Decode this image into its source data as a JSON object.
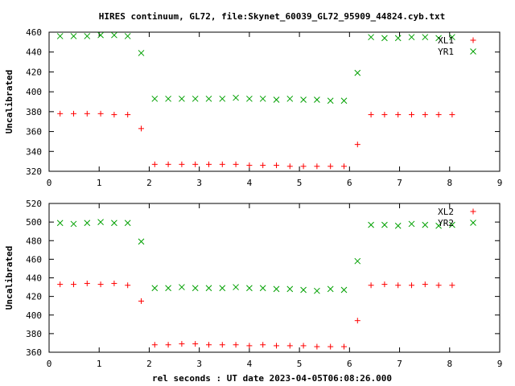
{
  "title": "HIRES continuum, GL72, file:Skynet_60039_GL72_95909_44824.cyb.txt",
  "xlabel": "rel seconds : UT date 2023-04-05T06:08:26.000",
  "colors": {
    "red_series": "#ff0000",
    "green_series": "#00a000",
    "axes": "#000000"
  },
  "chart_data": [
    {
      "type": "scatter",
      "ylabel": "Uncalibrated",
      "xlim": [
        0,
        9
      ],
      "ylim": [
        320,
        460
      ],
      "xticks": [
        0,
        1,
        2,
        3,
        4,
        5,
        6,
        7,
        8,
        9
      ],
      "yticks": [
        320,
        340,
        360,
        380,
        400,
        420,
        440,
        460
      ],
      "grid": false,
      "legend_position": "top-right",
      "series": [
        {
          "name": "XL1",
          "marker": "plus",
          "color": "#ff0000",
          "x": [
            0.22,
            0.49,
            0.76,
            1.03,
            1.3,
            1.57,
            1.84,
            2.11,
            2.38,
            2.65,
            2.92,
            3.19,
            3.46,
            3.73,
            4.0,
            4.27,
            4.54,
            4.81,
            5.08,
            5.35,
            5.62,
            5.89,
            6.16,
            6.43,
            6.7,
            6.97,
            7.24,
            7.51,
            7.78,
            8.05
          ],
          "y": [
            378,
            378,
            378,
            378,
            377,
            377,
            363,
            327,
            327,
            327,
            327,
            327,
            327,
            327,
            326,
            326,
            326,
            325,
            325,
            325,
            325,
            325,
            347,
            377,
            377,
            377,
            377,
            377,
            377,
            377
          ]
        },
        {
          "name": "YR1",
          "marker": "cross",
          "color": "#00a000",
          "x": [
            0.22,
            0.49,
            0.76,
            1.03,
            1.3,
            1.57,
            1.84,
            2.11,
            2.38,
            2.65,
            2.92,
            3.19,
            3.46,
            3.73,
            4.0,
            4.27,
            4.54,
            4.81,
            5.08,
            5.35,
            5.62,
            5.89,
            6.16,
            6.43,
            6.7,
            6.97,
            7.24,
            7.51,
            7.78,
            8.05
          ],
          "y": [
            456,
            456,
            456,
            457,
            457,
            456,
            439,
            393,
            393,
            393,
            393,
            393,
            393,
            394,
            393,
            393,
            392,
            393,
            392,
            392,
            391,
            391,
            419,
            455,
            454,
            454,
            455,
            455,
            454,
            455
          ]
        }
      ]
    },
    {
      "type": "scatter",
      "ylabel": "Uncalibrated",
      "xlim": [
        0,
        9
      ],
      "ylim": [
        360,
        520
      ],
      "xticks": [
        0,
        1,
        2,
        3,
        4,
        5,
        6,
        7,
        8,
        9
      ],
      "yticks": [
        360,
        380,
        400,
        420,
        440,
        460,
        480,
        500,
        520
      ],
      "grid": false,
      "legend_position": "top-right",
      "series": [
        {
          "name": "XL2",
          "marker": "plus",
          "color": "#ff0000",
          "x": [
            0.22,
            0.49,
            0.76,
            1.03,
            1.3,
            1.57,
            1.84,
            2.11,
            2.38,
            2.65,
            2.92,
            3.19,
            3.46,
            3.73,
            4.0,
            4.27,
            4.54,
            4.81,
            5.08,
            5.35,
            5.62,
            5.89,
            6.16,
            6.43,
            6.7,
            6.97,
            7.24,
            7.51,
            7.78,
            8.05
          ],
          "y": [
            433,
            433,
            434,
            433,
            434,
            432,
            415,
            368,
            368,
            369,
            369,
            368,
            368,
            368,
            367,
            368,
            367,
            367,
            367,
            366,
            366,
            366,
            394,
            432,
            433,
            432,
            432,
            433,
            432,
            432
          ]
        },
        {
          "name": "YR2",
          "marker": "cross",
          "color": "#00a000",
          "x": [
            0.22,
            0.49,
            0.76,
            1.03,
            1.3,
            1.57,
            1.84,
            2.11,
            2.38,
            2.65,
            2.92,
            3.19,
            3.46,
            3.73,
            4.0,
            4.27,
            4.54,
            4.81,
            5.08,
            5.35,
            5.62,
            5.89,
            6.16,
            6.43,
            6.7,
            6.97,
            7.24,
            7.51,
            7.78,
            8.05
          ],
          "y": [
            499,
            498,
            499,
            500,
            499,
            499,
            479,
            429,
            429,
            430,
            429,
            429,
            429,
            430,
            429,
            429,
            428,
            428,
            427,
            426,
            428,
            427,
            458,
            497,
            497,
            496,
            498,
            497,
            496,
            497
          ]
        }
      ]
    }
  ]
}
